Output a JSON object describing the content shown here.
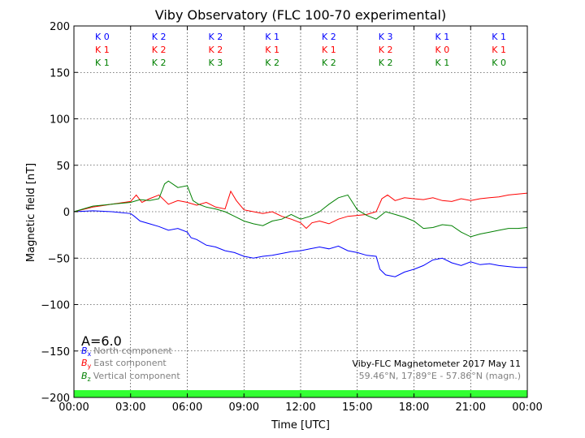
{
  "chart_data": {
    "type": "line",
    "title": "Viby Observatory (FLC 100-70 experimental)",
    "xlabel": "Time [UTC]",
    "ylabel": "Magnetic field [nT]",
    "x_ticks": [
      "00:00",
      "03:00",
      "06:00",
      "09:00",
      "12:00",
      "15:00",
      "18:00",
      "21:00",
      "00:00"
    ],
    "xlim_hours": [
      0,
      24
    ],
    "ylim": [
      -200,
      200
    ],
    "y_ticks": [
      200,
      150,
      100,
      50,
      0,
      -50,
      -100,
      -150,
      -200
    ],
    "grid": true,
    "colors": {
      "north": "#0000ff",
      "east": "#ff0000",
      "vertical": "#008000",
      "band": "#33ff33"
    },
    "k_index": {
      "north": [
        "K 0",
        "K 2",
        "K 2",
        "K 1",
        "K 2",
        "K 3",
        "K 1",
        "K 1"
      ],
      "east": [
        "K 1",
        "K 2",
        "K 2",
        "K 1",
        "K 1",
        "K 2",
        "K 0",
        "K 1"
      ],
      "vertical": [
        "K 1",
        "K 2",
        "K 3",
        "K 2",
        "K 2",
        "K 2",
        "K 1",
        "K 0"
      ]
    },
    "a_index": "A=6.0",
    "legend": {
      "north_sym": "B",
      "north_sub": "x",
      "north_label": "North component",
      "east_sym": "B",
      "east_sub": "y",
      "east_label": "East component",
      "vertical_sym": "B",
      "vertical_sub": "z",
      "vertical_label": "Vertical component"
    },
    "info_line1": "Viby-FLC Magnetometer 2017 May 11",
    "info_line2": "59.46°N, 17.89°E - 57.86°N (magn.)",
    "series": [
      {
        "name": "North component",
        "color": "#0000ff",
        "x": [
          0,
          1,
          2,
          3,
          3.2,
          3.5,
          4,
          4.5,
          5,
          5.5,
          6,
          6.2,
          6.5,
          7,
          7.5,
          8,
          8.5,
          9,
          9.5,
          10,
          10.5,
          11,
          11.5,
          12,
          12.5,
          13,
          13.5,
          14,
          14.5,
          15,
          15.5,
          16,
          16.2,
          16.5,
          17,
          17.5,
          18,
          18.5,
          19,
          19.5,
          20,
          20.5,
          21,
          21.5,
          22,
          22.5,
          23,
          23.5,
          24
        ],
        "y": [
          0,
          1,
          0,
          -2,
          -5,
          -10,
          -13,
          -16,
          -20,
          -18,
          -22,
          -28,
          -30,
          -36,
          -38,
          -42,
          -44,
          -48,
          -50,
          -48,
          -47,
          -45,
          -43,
          -42,
          -40,
          -38,
          -40,
          -37,
          -42,
          -44,
          -47,
          -48,
          -62,
          -68,
          -70,
          -65,
          -62,
          -58,
          -52,
          -50,
          -55,
          -58,
          -54,
          -57,
          -56,
          -58,
          -59,
          -60,
          -60
        ]
      },
      {
        "name": "East component",
        "color": "#ff0000",
        "x": [
          0,
          1,
          2,
          3,
          3.3,
          3.6,
          4,
          4.5,
          5,
          5.5,
          6,
          6.5,
          7,
          7.5,
          8,
          8.3,
          8.6,
          9,
          9.5,
          10,
          10.5,
          11,
          11.5,
          12,
          12.3,
          12.6,
          13,
          13.5,
          14,
          14.5,
          15,
          15.5,
          16,
          16.3,
          16.6,
          17,
          17.5,
          18,
          18.5,
          19,
          19.5,
          20,
          20.5,
          21,
          21.5,
          22,
          22.5,
          23,
          23.5,
          24
        ],
        "y": [
          0,
          5,
          8,
          11,
          18,
          10,
          14,
          18,
          8,
          12,
          10,
          7,
          10,
          5,
          3,
          22,
          12,
          2,
          0,
          -2,
          0,
          -5,
          -8,
          -12,
          -18,
          -12,
          -10,
          -13,
          -8,
          -5,
          -4,
          -3,
          0,
          14,
          18,
          12,
          15,
          14,
          13,
          15,
          12,
          11,
          14,
          12,
          14,
          15,
          16,
          18,
          19,
          20
        ]
      },
      {
        "name": "Vertical component",
        "color": "#008000",
        "x": [
          0,
          1,
          2,
          3,
          3.5,
          4,
          4.5,
          4.8,
          5,
          5.5,
          6,
          6.3,
          6.6,
          7,
          7.5,
          8,
          8.5,
          9,
          9.5,
          10,
          10.5,
          11,
          11.5,
          12,
          12.5,
          13,
          13.5,
          14,
          14.5,
          15,
          15.5,
          16,
          16.5,
          17,
          17.5,
          18,
          18.5,
          19,
          19.5,
          20,
          20.5,
          21,
          21.5,
          22,
          22.5,
          23,
          23.5,
          24
        ],
        "y": [
          0,
          6,
          8,
          10,
          13,
          12,
          14,
          30,
          33,
          26,
          28,
          12,
          8,
          5,
          3,
          0,
          -5,
          -10,
          -13,
          -15,
          -10,
          -8,
          -3,
          -8,
          -5,
          0,
          8,
          15,
          18,
          2,
          -4,
          -8,
          0,
          -3,
          -6,
          -10,
          -18,
          -17,
          -14,
          -15,
          -22,
          -27,
          -24,
          -22,
          -20,
          -18,
          -18,
          -17
        ]
      }
    ]
  }
}
